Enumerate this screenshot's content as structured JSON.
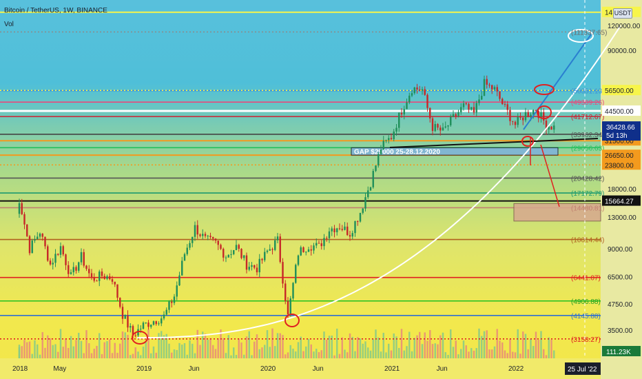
{
  "header": {
    "title": "Bitcoin / TetherUS, 1W, BINANCE",
    "indicator": "Vol",
    "currency": "USDT"
  },
  "chart_data": {
    "type": "candlestick",
    "symbol": "Bitcoin / TetherUS",
    "interval": "1W",
    "exchange": "BINANCE",
    "y_scale": "log",
    "y_ticks": [
      "120000.00",
      "90000.00",
      "18000.00",
      "13000.00",
      "9000.00",
      "6500.00",
      "4750.00",
      "3500.00"
    ],
    "x_ticks": [
      "2018",
      "May",
      "2019",
      "Jun",
      "2020",
      "Jun",
      "2021",
      "Jun",
      "2022"
    ],
    "crosshair_date": "25 Jul '22",
    "current_price": "36428.66",
    "countdown": "5d 13h",
    "volume_label": "111.23K",
    "price_badges": [
      {
        "label": "14",
        "color": "#f7f54a",
        "text_color": "#1b1f2a"
      },
      {
        "label": "56500.00",
        "color": "#f7f54a",
        "text_color": "#1b1f2a"
      },
      {
        "label": "44500.00",
        "color": "#ffffff",
        "text_color": "#1b1f2a"
      },
      {
        "label": "31500.00",
        "color": "#f39a1e",
        "text_color": "#1b1f2a"
      },
      {
        "label": "26650.00",
        "color": "#f39a1e",
        "text_color": "#1b1f2a"
      },
      {
        "label": "23800.00",
        "color": "#f39a1e",
        "text_color": "#1b1f2a"
      },
      {
        "label": "15664.27",
        "color": "#111111",
        "text_color": "#ffffff"
      }
    ],
    "level_labels": [
      {
        "text": "(111337.65)",
        "color": "#6a6a6a"
      },
      {
        "text": "(56351.13)",
        "color": "#3b8fd8"
      },
      {
        "text": "(49309.26)",
        "color": "#e84a7a"
      },
      {
        "text": "(41712.67)",
        "color": "#cc2030"
      },
      {
        "text": "(33962.34)",
        "color": "#555555"
      },
      {
        "text": "(29056.63)",
        "color": "#22c05a"
      },
      {
        "text": "(20428.42)",
        "color": "#555555"
      },
      {
        "text": "(17172.79)",
        "color": "#1a9a70"
      },
      {
        "text": "(14480.81)",
        "color": "#c08070"
      },
      {
        "text": "(10014.44)",
        "color": "#b06020"
      },
      {
        "text": "(6441.07)",
        "color": "#e02020"
      },
      {
        "text": "(4906.88)",
        "color": "#22a020"
      },
      {
        "text": "(4145.88)",
        "color": "#3070d0"
      },
      {
        "text": "(3158.27)",
        "color": "#e02020"
      }
    ],
    "annotations": [
      {
        "text": "GAP $29000 25-28.12.2020"
      }
    ],
    "levels": [
      {
        "value": 111337.65,
        "color": "#8a8a8a",
        "style": "dotted"
      },
      {
        "value": 56351.13,
        "color": "#3b8fd8"
      },
      {
        "value": 49309.26,
        "color": "#e84a7a"
      },
      {
        "value": 41712.67,
        "color": "#cc2030"
      },
      {
        "value": 33962.34,
        "color": "#444444"
      },
      {
        "value": 29056.63,
        "color": "#22c05a"
      },
      {
        "value": 20428.42,
        "color": "#555555"
      },
      {
        "value": 17172.79,
        "color": "#1a9a70"
      },
      {
        "value": 14480.81,
        "color": "#c08070"
      },
      {
        "value": 10014.44,
        "color": "#b06020"
      },
      {
        "value": 6441.07,
        "color": "#e02020"
      },
      {
        "value": 4906.88,
        "color": "#22c020"
      },
      {
        "value": 4145.88,
        "color": "#3070d0"
      },
      {
        "value": 3158.27,
        "color": "#e02020",
        "style": "dotted"
      },
      {
        "value": 56500,
        "color": "#f7f54a",
        "style": "dotted"
      },
      {
        "value": 44500,
        "color": "#ffffff",
        "width": 3
      },
      {
        "value": 31500,
        "color": "#f39a1e",
        "width": 2
      },
      {
        "value": 26650,
        "color": "#f39a1e",
        "width": 2
      },
      {
        "value": 23800,
        "color": "#f39a1e",
        "style": "dotted"
      },
      {
        "value": 15664.27,
        "color": "#111111",
        "width": 2
      },
      {
        "value": 140000,
        "color": "#f7f54a",
        "width": 2
      }
    ],
    "series": [
      {
        "name": "BTCUSDT",
        "points": [
          [
            "2018",
            13500
          ],
          [
            "Jan 2018",
            16000
          ],
          [
            "Feb 2018",
            9000
          ],
          [
            "Mar 2018",
            11000
          ],
          [
            "Apr 2018",
            7500
          ],
          [
            "May 2018",
            9200
          ],
          [
            "Jun 2018",
            6500
          ],
          [
            "Jul 2018",
            8200
          ],
          [
            "Aug 2018",
            6300
          ],
          [
            "Sep 2018",
            6600
          ],
          [
            "Oct 2018",
            6400
          ],
          [
            "Nov 2018",
            4200
          ],
          [
            "Dec 2018",
            3300
          ],
          [
            "2019",
            3700
          ],
          [
            "Feb 2019",
            3900
          ],
          [
            "Mar 2019",
            4100
          ],
          [
            "Apr 2019",
            5200
          ],
          [
            "May 2019",
            8500
          ],
          [
            "Jun 2019",
            11500
          ],
          [
            "Jul 2019",
            10000
          ],
          [
            "Aug 2019",
            9600
          ],
          [
            "Sep 2019",
            8300
          ],
          [
            "Oct 2019",
            9200
          ],
          [
            "Nov 2019",
            7500
          ],
          [
            "Dec 2019",
            7200
          ],
          [
            "2020",
            8700
          ],
          [
            "Feb 2020",
            9900
          ],
          [
            "Mar 2020",
            4100
          ],
          [
            "Apr 2020",
            8600
          ],
          [
            "May 2020",
            9400
          ],
          [
            "Jun 2020",
            9200
          ],
          [
            "Jul 2020",
            11300
          ],
          [
            "Aug 2020",
            11700
          ],
          [
            "Sep 2020",
            10800
          ],
          [
            "Oct 2020",
            13800
          ],
          [
            "Nov 2020",
            19500
          ],
          [
            "Dec 2020",
            29000
          ],
          [
            "2021",
            33000
          ],
          [
            "Feb 2021",
            45000
          ],
          [
            "Mar 2021",
            58000
          ],
          [
            "Apr 2021",
            57000
          ],
          [
            "May 2021",
            37000
          ],
          [
            "Jun 2021",
            35000
          ],
          [
            "Jul 2021",
            41000
          ],
          [
            "Aug 2021",
            47000
          ],
          [
            "Sep 2021",
            43000
          ],
          [
            "Oct 2021",
            61000
          ],
          [
            "Nov 2021",
            57000
          ],
          [
            "Dec 2021",
            46000
          ],
          [
            "2022",
            38000
          ],
          [
            "Feb 2022",
            43000
          ],
          [
            "Mar 2022",
            45500
          ],
          [
            "Apr 2022",
            38000
          ],
          [
            "May 2022",
            36500
          ]
        ]
      }
    ]
  }
}
